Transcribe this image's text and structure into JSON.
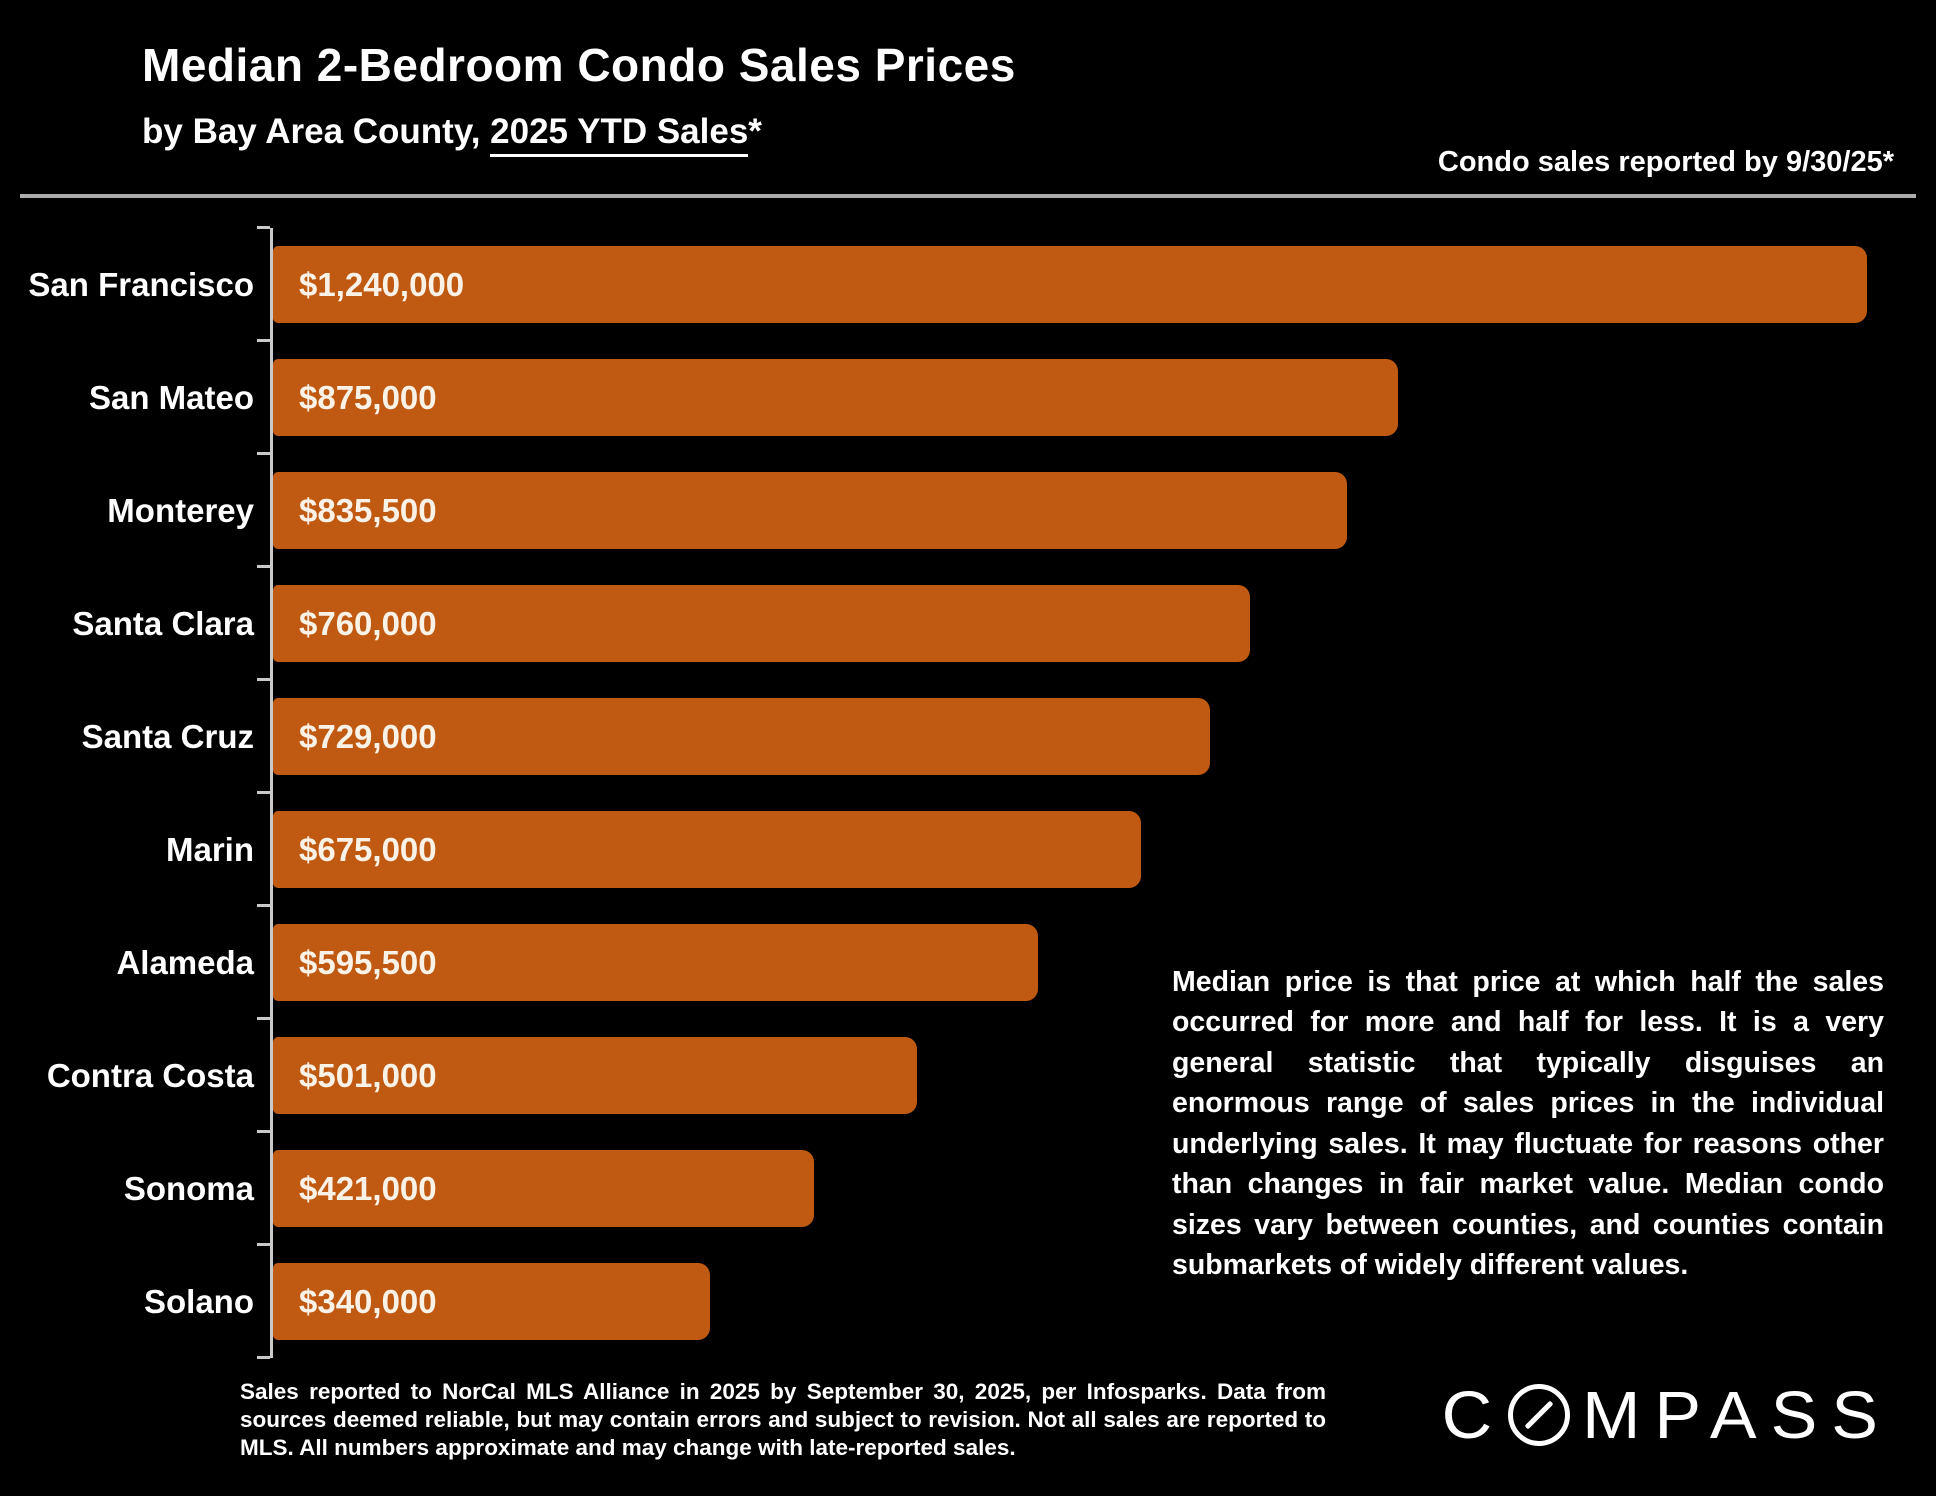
{
  "header": {
    "title": "Median 2-Bedroom Condo Sales Prices",
    "subtitle_prefix": "by Bay Area County, ",
    "subtitle_underlined": "2025 YTD Sales",
    "subtitle_suffix": "*",
    "note": "Condo sales reported by 9/30/25*"
  },
  "chart_data": {
    "type": "bar",
    "orientation": "horizontal",
    "title": "Median 2-Bedroom Condo Sales Prices",
    "subtitle": "by Bay Area County, 2025 YTD Sales*",
    "categories": [
      "San Francisco",
      "San Mateo",
      "Monterey",
      "Santa Clara",
      "Santa Cruz",
      "Marin",
      "Alameda",
      "Contra Costa",
      "Sonoma",
      "Solano"
    ],
    "values": [
      1240000,
      875000,
      835500,
      760000,
      729000,
      675000,
      595500,
      501000,
      421000,
      340000
    ],
    "value_labels": [
      "$1,240,000",
      "$875,000",
      "$835,500",
      "$760,000",
      "$729,000",
      "$675,000",
      "$595,500",
      "$501,000",
      "$421,000",
      "$340,000"
    ],
    "xlabel": "",
    "ylabel": "",
    "xlim": [
      0,
      1250000
    ],
    "grid": false,
    "legend": false,
    "value_labels_position": "inside-left",
    "bar_color": "#C05A12"
  },
  "explanation": {
    "text": "Median price is that price at which half the sales occurred for more and half for less. It is a very general statistic that typically disguises an enormous range of sales prices in the individual underlying sales. It may fluctuate for reasons other than changes in fair market value. Median condo sizes vary between counties, and counties contain submarkets of widely different values."
  },
  "footnote": {
    "text": "Sales reported to NorCal MLS Alliance in 2025 by September 30, 2025, per Infosparks. Data from sources deemed reliable, but may contain errors and subject to revision. Not all sales are reported to MLS. All numbers approximate and may change with late-reported sales."
  },
  "logo": {
    "brand": "COMPASS",
    "letters_before": "C",
    "letters_after": "MPASS"
  },
  "colors": {
    "background": "#000000",
    "bar": "#C05A12",
    "text": "#FFFFFF",
    "value_text": "#FAF2E6",
    "axis": "#C9C9C9",
    "rule": "#ABABAB"
  }
}
